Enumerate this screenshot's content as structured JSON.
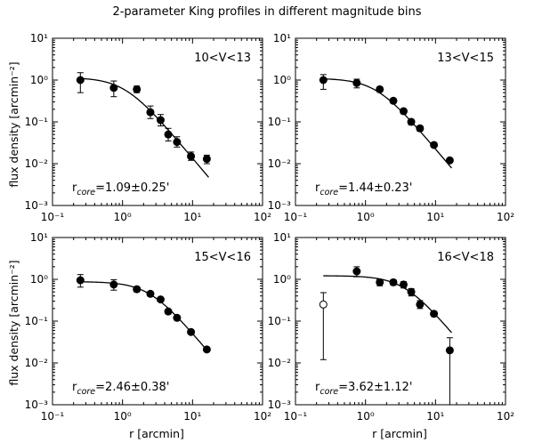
{
  "figure": {
    "title": "2-parameter King profiles in different magnitude bins",
    "ylabel": "flux density [arcmin⁻²]",
    "xlabel": "r [arcmin]"
  },
  "chart_data": [
    {
      "type": "scatter",
      "panel_label": "10<V<13",
      "annotation": "r_core=1.09±0.25'",
      "annotation_parts": {
        "r": "r",
        "sub": "core",
        "rest": "=1.09±0.25'"
      },
      "xscale": "log",
      "yscale": "log",
      "xlim": [
        0.1,
        100
      ],
      "ylim": [
        0.001,
        10
      ],
      "x_ticks": [
        "10⁻¹",
        "10⁰",
        "10¹",
        "10²"
      ],
      "y_ticks": [
        "10⁻³",
        "10⁻²",
        "10⁻¹",
        "10⁰",
        "10¹"
      ],
      "points": [
        {
          "x": 0.25,
          "y": 1.0,
          "err_lo": 0.5,
          "err_hi": 1.5
        },
        {
          "x": 0.75,
          "y": 0.65,
          "err_lo": 0.4,
          "err_hi": 0.95
        },
        {
          "x": 1.6,
          "y": 0.6,
          "err_lo": 0.5,
          "err_hi": 0.72
        },
        {
          "x": 2.5,
          "y": 0.17,
          "err_lo": 0.12,
          "err_hi": 0.24
        },
        {
          "x": 3.5,
          "y": 0.11,
          "err_lo": 0.08,
          "err_hi": 0.15
        },
        {
          "x": 4.5,
          "y": 0.05,
          "err_lo": 0.035,
          "err_hi": 0.07
        },
        {
          "x": 6.0,
          "y": 0.033,
          "err_lo": 0.025,
          "err_hi": 0.044
        },
        {
          "x": 9.5,
          "y": 0.015,
          "err_lo": 0.012,
          "err_hi": 0.019
        },
        {
          "x": 16.0,
          "y": 0.013,
          "err_lo": 0.01,
          "err_hi": 0.016
        }
      ],
      "model": {
        "name": "King profile",
        "k": 1.15,
        "rc": 1.09,
        "rmin": 0.25,
        "rmax": 17
      }
    },
    {
      "type": "scatter",
      "panel_label": "13<V<15",
      "annotation": "r_core=1.44±0.23'",
      "annotation_parts": {
        "r": "r",
        "sub": "core",
        "rest": "=1.44±0.23'"
      },
      "xscale": "log",
      "yscale": "log",
      "xlim": [
        0.1,
        100
      ],
      "ylim": [
        0.001,
        10
      ],
      "x_ticks": [
        "10⁻¹",
        "10⁰",
        "10¹",
        "10²"
      ],
      "y_ticks": [
        "10⁻³",
        "10⁻²",
        "10⁻¹",
        "10⁰",
        "10¹"
      ],
      "points": [
        {
          "x": 0.25,
          "y": 1.0,
          "err_lo": 0.6,
          "err_hi": 1.35
        },
        {
          "x": 0.75,
          "y": 0.85,
          "err_lo": 0.65,
          "err_hi": 1.05
        },
        {
          "x": 1.6,
          "y": 0.6,
          "err_lo": 0.52,
          "err_hi": 0.68
        },
        {
          "x": 2.5,
          "y": 0.32,
          "err_lo": 0.28,
          "err_hi": 0.36
        },
        {
          "x": 3.5,
          "y": 0.18,
          "err_lo": 0.155,
          "err_hi": 0.205
        },
        {
          "x": 4.5,
          "y": 0.1,
          "err_lo": 0.085,
          "err_hi": 0.115
        },
        {
          "x": 6.0,
          "y": 0.07,
          "err_lo": 0.06,
          "err_hi": 0.08
        },
        {
          "x": 9.5,
          "y": 0.028,
          "err_lo": 0.025,
          "err_hi": 0.031
        },
        {
          "x": 16.0,
          "y": 0.012,
          "err_lo": 0.011,
          "err_hi": 0.013
        }
      ],
      "model": {
        "name": "King profile",
        "k": 1.1,
        "rc": 1.44,
        "rmin": 0.25,
        "rmax": 17
      }
    },
    {
      "type": "scatter",
      "panel_label": "15<V<16",
      "annotation": "r_core=2.46±0.38'",
      "annotation_parts": {
        "r": "r",
        "sub": "core",
        "rest": "=2.46±0.38'"
      },
      "xscale": "log",
      "yscale": "log",
      "xlim": [
        0.1,
        100
      ],
      "ylim": [
        0.001,
        10
      ],
      "x_ticks": [
        "10⁻¹",
        "10⁰",
        "10¹",
        "10²"
      ],
      "y_ticks": [
        "10⁻³",
        "10⁻²",
        "10⁻¹",
        "10⁰",
        "10¹"
      ],
      "points": [
        {
          "x": 0.25,
          "y": 0.95,
          "err_lo": 0.65,
          "err_hi": 1.3
        },
        {
          "x": 0.75,
          "y": 0.75,
          "err_lo": 0.55,
          "err_hi": 0.98
        },
        {
          "x": 1.6,
          "y": 0.58,
          "err_lo": 0.5,
          "err_hi": 0.66
        },
        {
          "x": 2.5,
          "y": 0.45,
          "err_lo": 0.4,
          "err_hi": 0.5
        },
        {
          "x": 3.5,
          "y": 0.33,
          "err_lo": 0.3,
          "err_hi": 0.36
        },
        {
          "x": 4.5,
          "y": 0.17,
          "err_lo": 0.15,
          "err_hi": 0.19
        },
        {
          "x": 6.0,
          "y": 0.12,
          "err_lo": 0.11,
          "err_hi": 0.13
        },
        {
          "x": 9.5,
          "y": 0.055,
          "err_lo": 0.05,
          "err_hi": 0.06
        },
        {
          "x": 16.0,
          "y": 0.021,
          "err_lo": 0.019,
          "err_hi": 0.023
        }
      ],
      "model": {
        "name": "King profile",
        "k": 0.88,
        "rc": 2.46,
        "rmin": 0.25,
        "rmax": 17
      }
    },
    {
      "type": "scatter",
      "panel_label": "16<V<18",
      "annotation": "r_core=3.62±1.12'",
      "annotation_parts": {
        "r": "r",
        "sub": "core",
        "rest": "=3.62±1.12'"
      },
      "xscale": "log",
      "yscale": "log",
      "xlim": [
        0.1,
        100
      ],
      "ylim": [
        0.001,
        10
      ],
      "x_ticks": [
        "10⁻¹",
        "10⁰",
        "10¹",
        "10²"
      ],
      "y_ticks": [
        "10⁻³",
        "10⁻²",
        "10⁻¹",
        "10⁰",
        "10¹"
      ],
      "points": [
        {
          "x": 0.75,
          "y": 1.55,
          "err_lo": 1.15,
          "err_hi": 2.0
        },
        {
          "x": 1.6,
          "y": 0.85,
          "err_lo": 0.7,
          "err_hi": 1.0
        },
        {
          "x": 2.5,
          "y": 0.85,
          "err_lo": 0.72,
          "err_hi": 0.98
        },
        {
          "x": 3.5,
          "y": 0.75,
          "err_lo": 0.62,
          "err_hi": 0.88
        },
        {
          "x": 4.5,
          "y": 0.5,
          "err_lo": 0.4,
          "err_hi": 0.6
        },
        {
          "x": 6.0,
          "y": 0.25,
          "err_lo": 0.2,
          "err_hi": 0.31
        },
        {
          "x": 9.5,
          "y": 0.15,
          "err_lo": 0.13,
          "err_hi": 0.17
        },
        {
          "x": 16.0,
          "y": 0.02,
          "err_lo": 0.0008,
          "err_hi": 0.04
        }
      ],
      "open_points": [
        {
          "x": 0.25,
          "y": 0.25,
          "err_lo": 0.012,
          "err_hi": 0.48
        }
      ],
      "model": {
        "name": "King profile",
        "k": 1.22,
        "rc": 3.62,
        "rmin": 0.25,
        "rmax": 17
      }
    }
  ]
}
